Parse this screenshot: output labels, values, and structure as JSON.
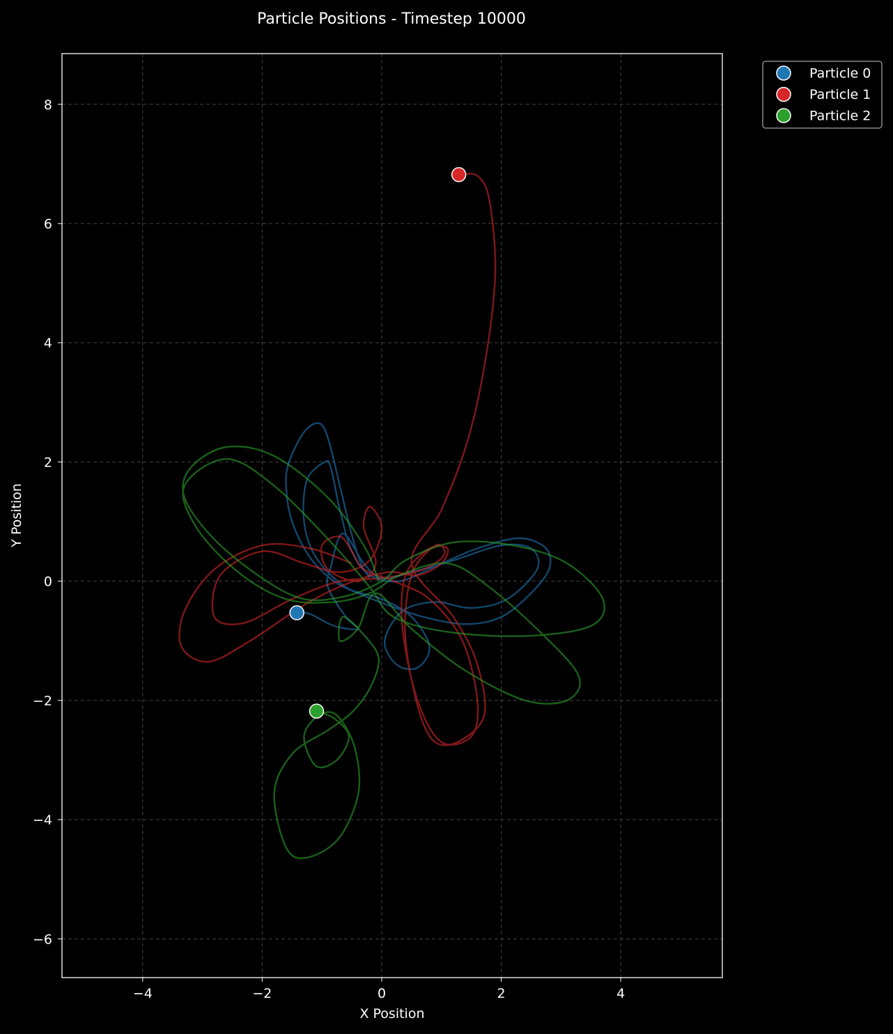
{
  "chart_data": {
    "type": "scatter",
    "title": "Particle Positions - Timestep 10000",
    "xlabel": "X Position",
    "ylabel": "Y Position",
    "xlim": [
      -5.35,
      5.7
    ],
    "ylim": [
      -6.65,
      8.85
    ],
    "xticks": [
      -4,
      -2,
      0,
      2,
      4
    ],
    "yticks": [
      -6,
      -4,
      -2,
      0,
      2,
      4,
      6,
      8
    ],
    "xtick_labels": [
      "−4",
      "−2",
      "0",
      "2",
      "4"
    ],
    "ytick_labels": [
      "−6",
      "−4",
      "−2",
      "0",
      "2",
      "4",
      "6",
      "8"
    ],
    "grid": true,
    "legend_position": "outside-top-right",
    "background": "#000000",
    "series": [
      {
        "name": "Particle 0",
        "color": "#1f77b4",
        "current_position": [
          -1.42,
          -0.53
        ],
        "trajectory": [
          [
            -0.2,
            0.05
          ],
          [
            -0.35,
            0.3
          ],
          [
            -0.52,
            0.85
          ],
          [
            -0.7,
            1.6
          ],
          [
            -0.9,
            2.4
          ],
          [
            -1.05,
            2.65
          ],
          [
            -1.3,
            2.5
          ],
          [
            -1.55,
            2.0
          ],
          [
            -1.6,
            1.6
          ],
          [
            -1.5,
            1.0
          ],
          [
            -1.2,
            0.4
          ],
          [
            -0.8,
            0.0
          ],
          [
            -0.4,
            -0.2
          ],
          [
            0.1,
            -0.4
          ],
          [
            0.7,
            -0.6
          ],
          [
            1.4,
            -0.72
          ],
          [
            2.0,
            -0.6
          ],
          [
            2.5,
            -0.2
          ],
          [
            2.8,
            0.2
          ],
          [
            2.75,
            0.55
          ],
          [
            2.3,
            0.72
          ],
          [
            1.6,
            0.55
          ],
          [
            0.9,
            0.25
          ],
          [
            0.3,
            0.0
          ],
          [
            -0.2,
            0.1
          ],
          [
            -0.5,
            0.5
          ],
          [
            -0.7,
            1.2
          ],
          [
            -0.85,
            1.9
          ],
          [
            -0.95,
            2.0
          ],
          [
            -1.25,
            1.7
          ],
          [
            -1.3,
            1.0
          ],
          [
            -1.1,
            0.4
          ],
          [
            -0.6,
            -0.1
          ],
          [
            0.0,
            -0.3
          ],
          [
            0.5,
            -0.6
          ],
          [
            0.8,
            -1.1
          ],
          [
            0.6,
            -1.45
          ],
          [
            0.25,
            -1.4
          ],
          [
            0.05,
            -1.0
          ],
          [
            0.35,
            -0.5
          ],
          [
            0.9,
            -0.35
          ],
          [
            1.5,
            -0.45
          ],
          [
            2.1,
            -0.3
          ],
          [
            2.6,
            0.2
          ],
          [
            2.5,
            0.55
          ],
          [
            2.0,
            0.6
          ],
          [
            1.2,
            0.35
          ],
          [
            0.5,
            0.15
          ],
          [
            0.0,
            0.05
          ],
          [
            -0.3,
            0.3
          ],
          [
            -0.65,
            0.8
          ],
          [
            -0.85,
            0.25
          ],
          [
            -0.9,
            -0.1
          ],
          [
            -0.6,
            -0.6
          ],
          [
            -0.4,
            -0.8
          ],
          [
            -0.8,
            -0.75
          ],
          [
            -1.2,
            -0.55
          ],
          [
            -1.42,
            -0.53
          ]
        ]
      },
      {
        "name": "Particle 1",
        "color": "#d62728",
        "current_position": [
          1.29,
          6.82
        ],
        "trajectory": [
          [
            -0.5,
            0.3
          ],
          [
            -1.2,
            0.55
          ],
          [
            -2.0,
            0.6
          ],
          [
            -2.8,
            0.2
          ],
          [
            -3.3,
            -0.5
          ],
          [
            -3.35,
            -1.1
          ],
          [
            -2.9,
            -1.35
          ],
          [
            -2.2,
            -1.0
          ],
          [
            -1.3,
            -0.4
          ],
          [
            -0.6,
            -0.05
          ],
          [
            0.1,
            0.15
          ],
          [
            0.6,
            0.1
          ],
          [
            1.0,
            0.3
          ],
          [
            1.1,
            0.55
          ],
          [
            0.8,
            0.55
          ],
          [
            0.4,
            0.1
          ],
          [
            0.35,
            -0.8
          ],
          [
            0.6,
            -2.0
          ],
          [
            1.0,
            -2.7
          ],
          [
            1.5,
            -2.6
          ],
          [
            1.6,
            -2.0
          ],
          [
            1.35,
            -1.0
          ],
          [
            0.8,
            -0.3
          ],
          [
            0.2,
            0.0
          ],
          [
            -0.3,
            0.2
          ],
          [
            -0.5,
            0.5
          ],
          [
            -0.7,
            0.75
          ],
          [
            -1.0,
            0.6
          ],
          [
            -0.9,
            0.2
          ],
          [
            -0.4,
            0.0
          ],
          [
            -0.1,
            0.3
          ],
          [
            -0.3,
            0.9
          ],
          [
            -0.2,
            1.25
          ],
          [
            0.0,
            0.9
          ],
          [
            -0.2,
            0.35
          ],
          [
            -0.7,
            0.15
          ],
          [
            -1.3,
            0.3
          ],
          [
            -2.0,
            0.5
          ],
          [
            -2.7,
            0.1
          ],
          [
            -2.8,
            -0.6
          ],
          [
            -2.3,
            -0.7
          ],
          [
            -1.5,
            -0.3
          ],
          [
            -0.7,
            0.0
          ],
          [
            0.0,
            0.05
          ],
          [
            0.7,
            0.2
          ],
          [
            1.05,
            0.45
          ],
          [
            0.9,
            0.6
          ],
          [
            0.5,
            0.1
          ],
          [
            0.4,
            -1.0
          ],
          [
            0.7,
            -2.4
          ],
          [
            1.1,
            -2.75
          ],
          [
            1.7,
            -2.3
          ],
          [
            1.6,
            -1.4
          ],
          [
            1.2,
            -0.6
          ],
          [
            0.5,
            0.3
          ],
          [
            1.0,
            1.2
          ],
          [
            1.45,
            2.4
          ],
          [
            1.75,
            3.8
          ],
          [
            1.9,
            5.2
          ],
          [
            1.8,
            6.4
          ],
          [
            1.6,
            6.8
          ],
          [
            1.29,
            6.82
          ]
        ]
      },
      {
        "name": "Particle 2",
        "color": "#2ca02c",
        "current_position": [
          -1.09,
          -2.18
        ],
        "trajectory": [
          [
            -0.05,
            0.0
          ],
          [
            -0.3,
            0.6
          ],
          [
            -0.9,
            1.4
          ],
          [
            -1.8,
            2.1
          ],
          [
            -2.6,
            2.25
          ],
          [
            -3.2,
            1.9
          ],
          [
            -3.3,
            1.4
          ],
          [
            -2.8,
            0.7
          ],
          [
            -2.0,
            0.05
          ],
          [
            -1.3,
            -0.3
          ],
          [
            -0.6,
            -0.25
          ],
          [
            0.0,
            0.0
          ],
          [
            0.4,
            0.35
          ],
          [
            1.2,
            0.65
          ],
          [
            2.2,
            0.6
          ],
          [
            3.1,
            0.3
          ],
          [
            3.7,
            -0.3
          ],
          [
            3.5,
            -0.75
          ],
          [
            2.4,
            -0.92
          ],
          [
            1.1,
            -0.85
          ],
          [
            0.2,
            -0.6
          ],
          [
            -0.2,
            -0.1
          ],
          [
            -0.8,
            0.6
          ],
          [
            -1.8,
            1.6
          ],
          [
            -2.6,
            2.05
          ],
          [
            -3.3,
            1.6
          ],
          [
            -3.1,
            0.9
          ],
          [
            -2.4,
            0.15
          ],
          [
            -1.6,
            -0.3
          ],
          [
            -0.8,
            -0.35
          ],
          [
            -0.2,
            -0.2
          ],
          [
            0.3,
            0.1
          ],
          [
            1.1,
            0.3
          ],
          [
            1.8,
            -0.1
          ],
          [
            2.7,
            -0.9
          ],
          [
            3.3,
            -1.6
          ],
          [
            3.1,
            -2.0
          ],
          [
            2.4,
            -2.0
          ],
          [
            1.4,
            -1.5
          ],
          [
            0.5,
            -0.8
          ],
          [
            -0.1,
            -0.2
          ],
          [
            -0.4,
            -0.8
          ],
          [
            -0.7,
            -1.0
          ],
          [
            -0.65,
            -0.6
          ],
          [
            -0.3,
            -0.9
          ],
          [
            -0.05,
            -1.3
          ],
          [
            -0.2,
            -1.8
          ],
          [
            -0.5,
            -2.2
          ],
          [
            -0.9,
            -2.5
          ],
          [
            -1.5,
            -2.9
          ],
          [
            -1.8,
            -3.6
          ],
          [
            -1.5,
            -4.6
          ],
          [
            -0.8,
            -4.4
          ],
          [
            -0.4,
            -3.6
          ],
          [
            -0.45,
            -2.8
          ],
          [
            -0.75,
            -2.25
          ],
          [
            -1.05,
            -2.25
          ],
          [
            -1.3,
            -2.6
          ],
          [
            -1.1,
            -3.1
          ],
          [
            -0.75,
            -3.0
          ],
          [
            -0.55,
            -2.6
          ],
          [
            -0.8,
            -2.3
          ],
          [
            -1.09,
            -2.18
          ]
        ]
      }
    ]
  }
}
